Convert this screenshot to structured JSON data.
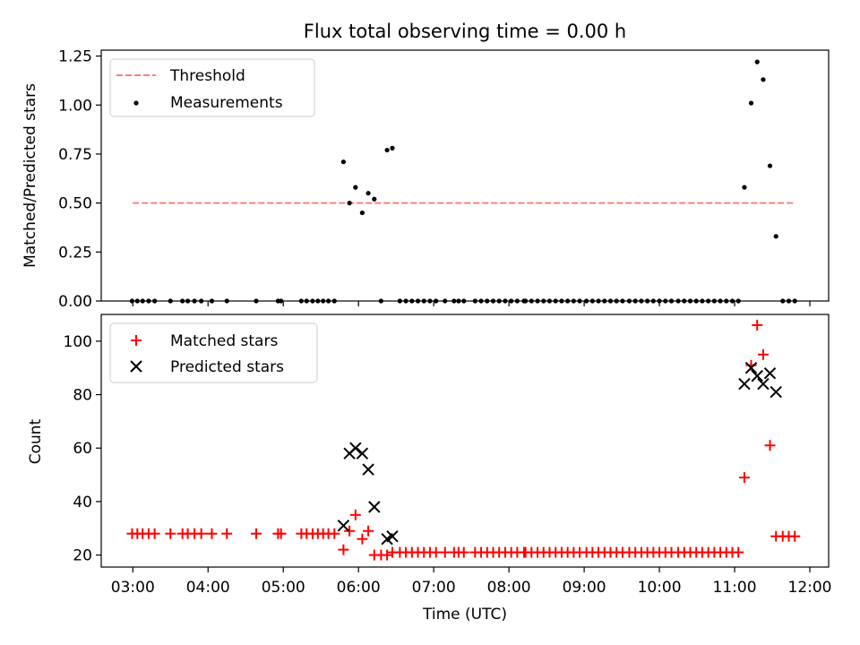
{
  "chart_data": [
    {
      "type": "scatter",
      "title": "Flux total observing time = 0.00 h",
      "xlabel": "",
      "ylabel": "Matched/Predicted stars",
      "xlim": [
        2.58,
        12.25
      ],
      "ylim": [
        0,
        1.28
      ],
      "yticks": [
        0,
        0.25,
        0.5,
        0.75,
        1.0,
        1.25
      ],
      "ytick_labels": [
        "0.00",
        "0.25",
        "0.50",
        "0.75",
        "1.00",
        "1.25"
      ],
      "legend_position": "top-left",
      "grid": false,
      "threshold": {
        "name": "Threshold",
        "y": 0.5,
        "x": [
          3.0,
          11.8
        ],
        "color": "#ff7f7f"
      },
      "series": [
        {
          "name": "Measurements",
          "marker": "dot",
          "color": "#000000",
          "points": [
            [
              2.99,
              0
            ],
            [
              3.06,
              0
            ],
            [
              3.13,
              0
            ],
            [
              3.21,
              0
            ],
            [
              3.29,
              0
            ],
            [
              3.5,
              0
            ],
            [
              3.66,
              0
            ],
            [
              3.73,
              0
            ],
            [
              3.82,
              0
            ],
            [
              3.91,
              0
            ],
            [
              4.05,
              0
            ],
            [
              4.25,
              0
            ],
            [
              4.64,
              0
            ],
            [
              4.93,
              0
            ],
            [
              4.97,
              0
            ],
            [
              5.24,
              0
            ],
            [
              5.31,
              0
            ],
            [
              5.39,
              0
            ],
            [
              5.46,
              0
            ],
            [
              5.53,
              0
            ],
            [
              5.6,
              0
            ],
            [
              5.68,
              0
            ],
            [
              5.8,
              0.71
            ],
            [
              5.88,
              0.5
            ],
            [
              5.96,
              0.58
            ],
            [
              6.05,
              0.45
            ],
            [
              6.13,
              0.55
            ],
            [
              6.21,
              0.52
            ],
            [
              6.3,
              0
            ],
            [
              6.38,
              0.77
            ],
            [
              6.45,
              0.78
            ],
            [
              6.55,
              0
            ],
            [
              6.63,
              0
            ],
            [
              6.71,
              0
            ],
            [
              6.79,
              0
            ],
            [
              6.87,
              0
            ],
            [
              6.95,
              0
            ],
            [
              7.03,
              0
            ],
            [
              7.15,
              0
            ],
            [
              7.27,
              0
            ],
            [
              7.33,
              0
            ],
            [
              7.4,
              0
            ],
            [
              7.55,
              0
            ],
            [
              7.63,
              0
            ],
            [
              7.71,
              0
            ],
            [
              7.79,
              0
            ],
            [
              7.87,
              0
            ],
            [
              7.95,
              0
            ],
            [
              8.03,
              0
            ],
            [
              8.11,
              0
            ],
            [
              8.2,
              0
            ],
            [
              8.22,
              0
            ],
            [
              8.3,
              0
            ],
            [
              8.38,
              0
            ],
            [
              8.46,
              0
            ],
            [
              8.54,
              0
            ],
            [
              8.62,
              0
            ],
            [
              8.7,
              0
            ],
            [
              8.78,
              0
            ],
            [
              8.86,
              0
            ],
            [
              8.94,
              0
            ],
            [
              9.03,
              0
            ],
            [
              9.11,
              0
            ],
            [
              9.19,
              0
            ],
            [
              9.27,
              0
            ],
            [
              9.35,
              0
            ],
            [
              9.43,
              0
            ],
            [
              9.51,
              0
            ],
            [
              9.6,
              0
            ],
            [
              9.68,
              0
            ],
            [
              9.76,
              0
            ],
            [
              9.84,
              0
            ],
            [
              9.92,
              0
            ],
            [
              10.0,
              0
            ],
            [
              10.08,
              0
            ],
            [
              10.16,
              0
            ],
            [
              10.25,
              0
            ],
            [
              10.33,
              0
            ],
            [
              10.41,
              0
            ],
            [
              10.49,
              0
            ],
            [
              10.57,
              0
            ],
            [
              10.65,
              0
            ],
            [
              10.73,
              0
            ],
            [
              10.81,
              0
            ],
            [
              10.89,
              0
            ],
            [
              10.97,
              0
            ],
            [
              11.05,
              0
            ],
            [
              11.13,
              0.58
            ],
            [
              11.22,
              1.01
            ],
            [
              11.3,
              1.22
            ],
            [
              11.38,
              1.13
            ],
            [
              11.47,
              0.69
            ],
            [
              11.55,
              0.33
            ],
            [
              11.64,
              0
            ],
            [
              11.72,
              0
            ],
            [
              11.8,
              0
            ]
          ]
        }
      ]
    },
    {
      "type": "scatter",
      "title": "",
      "xlabel": "Time (UTC)",
      "ylabel": "Count",
      "xlim": [
        2.58,
        12.25
      ],
      "ylim": [
        15.5,
        110
      ],
      "yticks": [
        20,
        40,
        60,
        80,
        100
      ],
      "ytick_labels": [
        "20",
        "40",
        "60",
        "80",
        "100"
      ],
      "xticks": [
        3,
        4,
        5,
        6,
        7,
        8,
        9,
        10,
        11,
        12
      ],
      "xtick_labels": [
        "03:00",
        "04:00",
        "05:00",
        "06:00",
        "07:00",
        "08:00",
        "09:00",
        "10:00",
        "11:00",
        "12:00"
      ],
      "legend_position": "top-left",
      "grid": false,
      "series": [
        {
          "name": "Matched stars",
          "marker": "plus",
          "color": "#ff0000",
          "points": [
            [
              2.99,
              28
            ],
            [
              3.06,
              28
            ],
            [
              3.13,
              28
            ],
            [
              3.21,
              28
            ],
            [
              3.29,
              28
            ],
            [
              3.5,
              28
            ],
            [
              3.66,
              28
            ],
            [
              3.73,
              28
            ],
            [
              3.82,
              28
            ],
            [
              3.91,
              28
            ],
            [
              4.05,
              28
            ],
            [
              4.25,
              28
            ],
            [
              4.64,
              28
            ],
            [
              4.93,
              28
            ],
            [
              4.97,
              28
            ],
            [
              5.24,
              28
            ],
            [
              5.31,
              28
            ],
            [
              5.39,
              28
            ],
            [
              5.46,
              28
            ],
            [
              5.53,
              28
            ],
            [
              5.6,
              28
            ],
            [
              5.68,
              28
            ],
            [
              5.8,
              22
            ],
            [
              5.88,
              29
            ],
            [
              5.96,
              35
            ],
            [
              6.05,
              26
            ],
            [
              6.13,
              29
            ],
            [
              6.21,
              20
            ],
            [
              6.3,
              20
            ],
            [
              6.38,
              20
            ],
            [
              6.45,
              21
            ],
            [
              6.55,
              21
            ],
            [
              6.63,
              21
            ],
            [
              6.71,
              21
            ],
            [
              6.79,
              21
            ],
            [
              6.87,
              21
            ],
            [
              6.95,
              21
            ],
            [
              7.03,
              21
            ],
            [
              7.15,
              21
            ],
            [
              7.27,
              21
            ],
            [
              7.33,
              21
            ],
            [
              7.4,
              21
            ],
            [
              7.55,
              21
            ],
            [
              7.63,
              21
            ],
            [
              7.71,
              21
            ],
            [
              7.79,
              21
            ],
            [
              7.87,
              21
            ],
            [
              7.95,
              21
            ],
            [
              8.03,
              21
            ],
            [
              8.11,
              21
            ],
            [
              8.2,
              21
            ],
            [
              8.22,
              21
            ],
            [
              8.3,
              21
            ],
            [
              8.38,
              21
            ],
            [
              8.46,
              21
            ],
            [
              8.54,
              21
            ],
            [
              8.62,
              21
            ],
            [
              8.7,
              21
            ],
            [
              8.78,
              21
            ],
            [
              8.86,
              21
            ],
            [
              8.94,
              21
            ],
            [
              9.03,
              21
            ],
            [
              9.11,
              21
            ],
            [
              9.19,
              21
            ],
            [
              9.27,
              21
            ],
            [
              9.35,
              21
            ],
            [
              9.43,
              21
            ],
            [
              9.51,
              21
            ],
            [
              9.6,
              21
            ],
            [
              9.68,
              21
            ],
            [
              9.76,
              21
            ],
            [
              9.84,
              21
            ],
            [
              9.92,
              21
            ],
            [
              10.0,
              21
            ],
            [
              10.08,
              21
            ],
            [
              10.16,
              21
            ],
            [
              10.25,
              21
            ],
            [
              10.33,
              21
            ],
            [
              10.41,
              21
            ],
            [
              10.49,
              21
            ],
            [
              10.57,
              21
            ],
            [
              10.65,
              21
            ],
            [
              10.73,
              21
            ],
            [
              10.81,
              21
            ],
            [
              10.89,
              21
            ],
            [
              10.97,
              21
            ],
            [
              11.05,
              21
            ],
            [
              11.13,
              49
            ],
            [
              11.22,
              91
            ],
            [
              11.3,
              106
            ],
            [
              11.38,
              95
            ],
            [
              11.47,
              61
            ],
            [
              11.55,
              27
            ],
            [
              11.64,
              27
            ],
            [
              11.72,
              27
            ],
            [
              11.8,
              27
            ]
          ]
        },
        {
          "name": "Predicted stars",
          "marker": "x",
          "color": "#000000",
          "points": [
            [
              5.8,
              31
            ],
            [
              5.88,
              58
            ],
            [
              5.96,
              60
            ],
            [
              6.05,
              58
            ],
            [
              6.13,
              52
            ],
            [
              6.21,
              38
            ],
            [
              6.38,
              26
            ],
            [
              6.45,
              27
            ],
            [
              11.13,
              84
            ],
            [
              11.22,
              90
            ],
            [
              11.3,
              87
            ],
            [
              11.38,
              84
            ],
            [
              11.47,
              88
            ],
            [
              11.55,
              81
            ]
          ]
        }
      ]
    }
  ]
}
